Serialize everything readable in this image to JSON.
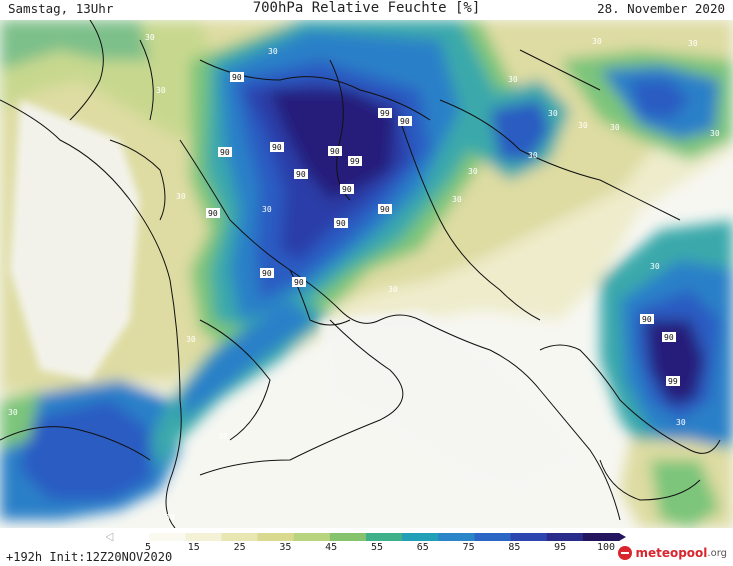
{
  "header": {
    "valid_time": "Samstag, 13Uhr",
    "title": "700hPa Relative Feuchte [%]",
    "date": "28. November 2020"
  },
  "colorbar": {
    "ticks": [
      "5",
      "15",
      "25",
      "35",
      "45",
      "55",
      "65",
      "75",
      "85",
      "95",
      "100"
    ],
    "colors": [
      "#ffffff",
      "#fafaf0",
      "#f3f1d6",
      "#e8e6b2",
      "#d9d98f",
      "#b9d47e",
      "#86c36f",
      "#3fb08a",
      "#22a0b8",
      "#2a86c9",
      "#2c66c4",
      "#2c45b0",
      "#2a2c8c",
      "#24155f"
    ]
  },
  "footer": {
    "init": "+192h Init:12Z20NOV2020"
  },
  "logo": {
    "brand": "meteopool",
    "tld": ".org"
  },
  "labels": {
    "l90": "90",
    "l99": "99",
    "l30": "30"
  }
}
